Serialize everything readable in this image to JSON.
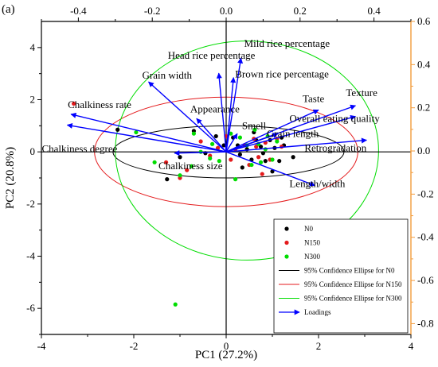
{
  "chart_data": {
    "type": "scatter",
    "panel_label": "(a)",
    "xlabel": "PC1 (27.2%)",
    "ylabel": "PC2 (20.8%)",
    "xlim": [
      -4,
      4
    ],
    "ylim": [
      -7,
      5
    ],
    "x_ticks": [
      -4,
      -2,
      0,
      2,
      4
    ],
    "y_ticks": [
      -6,
      -4,
      -2,
      0,
      2,
      4
    ],
    "top_xlim": [
      -0.5,
      0.5
    ],
    "top_ticks": [
      -0.4,
      -0.2,
      0.0,
      0.2,
      0.4
    ],
    "right_ylim": [
      -0.85,
      0.6
    ],
    "right_ticks": [
      0.6,
      0.4,
      0.2,
      0.0,
      -0.2,
      -0.4,
      -0.6,
      -0.8
    ],
    "grid": false,
    "legend_position": "bottom-right",
    "series": [
      {
        "name": "N0",
        "color": "#000000",
        "points": [
          [
            -2.35,
            0.85
          ],
          [
            -1.28,
            -1.05
          ],
          [
            -1.0,
            -0.2
          ],
          [
            -0.7,
            0.8
          ],
          [
            -0.45,
            -0.05
          ],
          [
            -0.22,
            0.6
          ],
          [
            -0.05,
            0.25
          ],
          [
            0.15,
            0.55
          ],
          [
            0.25,
            0.25
          ],
          [
            0.3,
            -0.1
          ],
          [
            0.35,
            -0.6
          ],
          [
            0.45,
            0.1
          ],
          [
            0.55,
            -0.3
          ],
          [
            0.6,
            0.75
          ],
          [
            0.65,
            0.45
          ],
          [
            0.75,
            0.2
          ],
          [
            0.8,
            -0.05
          ],
          [
            0.85,
            -0.35
          ],
          [
            0.95,
            0.45
          ],
          [
            1.0,
            -0.75
          ],
          [
            1.05,
            0.15
          ],
          [
            1.15,
            -0.35
          ],
          [
            1.2,
            0.55
          ],
          [
            1.25,
            0.25
          ],
          [
            1.45,
            -0.2
          ]
        ]
      },
      {
        "name": "N150",
        "color": "#e41a1c",
        "points": [
          [
            -3.3,
            1.85
          ],
          [
            -1.3,
            -0.4
          ],
          [
            -1.0,
            -1.0
          ],
          [
            -0.85,
            -0.7
          ],
          [
            -0.55,
            0.4
          ],
          [
            -0.35,
            -0.15
          ],
          [
            -0.18,
            0.15
          ],
          [
            0.0,
            0.6
          ],
          [
            0.1,
            -0.3
          ],
          [
            0.2,
            0.1
          ],
          [
            0.4,
            0.25
          ],
          [
            0.5,
            -0.5
          ],
          [
            0.6,
            0.5
          ],
          [
            0.65,
            0.2
          ],
          [
            0.7,
            -0.2
          ],
          [
            0.78,
            -0.85
          ],
          [
            0.85,
            0.35
          ],
          [
            0.95,
            -0.3
          ],
          [
            1.1,
            0.5
          ],
          [
            1.2,
            0.2
          ]
        ]
      },
      {
        "name": "N300",
        "color": "#00dd00",
        "points": [
          [
            -1.95,
            0.75
          ],
          [
            -1.55,
            -0.4
          ],
          [
            -1.0,
            -0.9
          ],
          [
            -0.75,
            -0.55
          ],
          [
            -0.7,
            0.7
          ],
          [
            -0.55,
            0.0
          ],
          [
            -0.35,
            -0.25
          ],
          [
            -0.3,
            0.3
          ],
          [
            -0.15,
            -0.35
          ],
          [
            0.1,
            0.7
          ],
          [
            0.2,
            -1.05
          ],
          [
            0.3,
            0.55
          ],
          [
            0.45,
            0.25
          ],
          [
            0.55,
            -0.5
          ],
          [
            0.62,
            0.85
          ],
          [
            0.7,
            0.3
          ],
          [
            0.75,
            -0.4
          ],
          [
            0.85,
            0.1
          ],
          [
            0.9,
            0.6
          ],
          [
            1.0,
            -0.3
          ],
          [
            1.1,
            0.4
          ],
          [
            -1.1,
            -5.85
          ]
        ]
      }
    ],
    "ellipses": [
      {
        "name": "95% Confidence Ellipse for N0",
        "color": "#000000",
        "cx": 0.05,
        "cy": 0.0,
        "rx": 2.5,
        "ry": 1.0
      },
      {
        "name": "95% Confidence Ellipse for N150",
        "color": "#e41a1c",
        "cx": 0.0,
        "cy": 0.0,
        "rx": 2.85,
        "ry": 2.1
      },
      {
        "name": "95% Confidence Ellipse for N300",
        "color": "#00dd00",
        "cx": 0.45,
        "cy": 0.05,
        "rx": 2.85,
        "ry": 4.2
      }
    ],
    "loadings": {
      "name": "Loadings",
      "color": "#0000ff",
      "vectors": [
        {
          "label": "Mild rice percentage",
          "x": 0.04,
          "y": 0.43
        },
        {
          "label": "Head rice percentage",
          "x": -0.02,
          "y": 0.36
        },
        {
          "label": "Brown rice percentage",
          "x": 0.02,
          "y": 0.34
        },
        {
          "label": "Grain width",
          "x": -0.21,
          "y": 0.32
        },
        {
          "label": "Chalkiness rate",
          "x": -0.42,
          "y": 0.17
        },
        {
          "label": "Chalkiness degree",
          "x": -0.43,
          "y": 0.12
        },
        {
          "label": "Appearance",
          "x": -0.08,
          "y": 0.15
        },
        {
          "label": "Smell",
          "x": 0.03,
          "y": 0.08
        },
        {
          "label": "Chalkiness size",
          "x": -0.14,
          "y": -0.01
        },
        {
          "label": "Taste",
          "x": 0.25,
          "y": 0.19
        },
        {
          "label": "Texture",
          "x": 0.35,
          "y": 0.21
        },
        {
          "label": "Overall eating quality",
          "x": 0.35,
          "y": 0.16
        },
        {
          "label": "Grain length",
          "x": 0.14,
          "y": 0.08
        },
        {
          "label": "Retrogradation",
          "x": 0.38,
          "y": 0.05
        },
        {
          "label": "Length/width",
          "x": 0.24,
          "y": -0.16
        }
      ]
    }
  }
}
